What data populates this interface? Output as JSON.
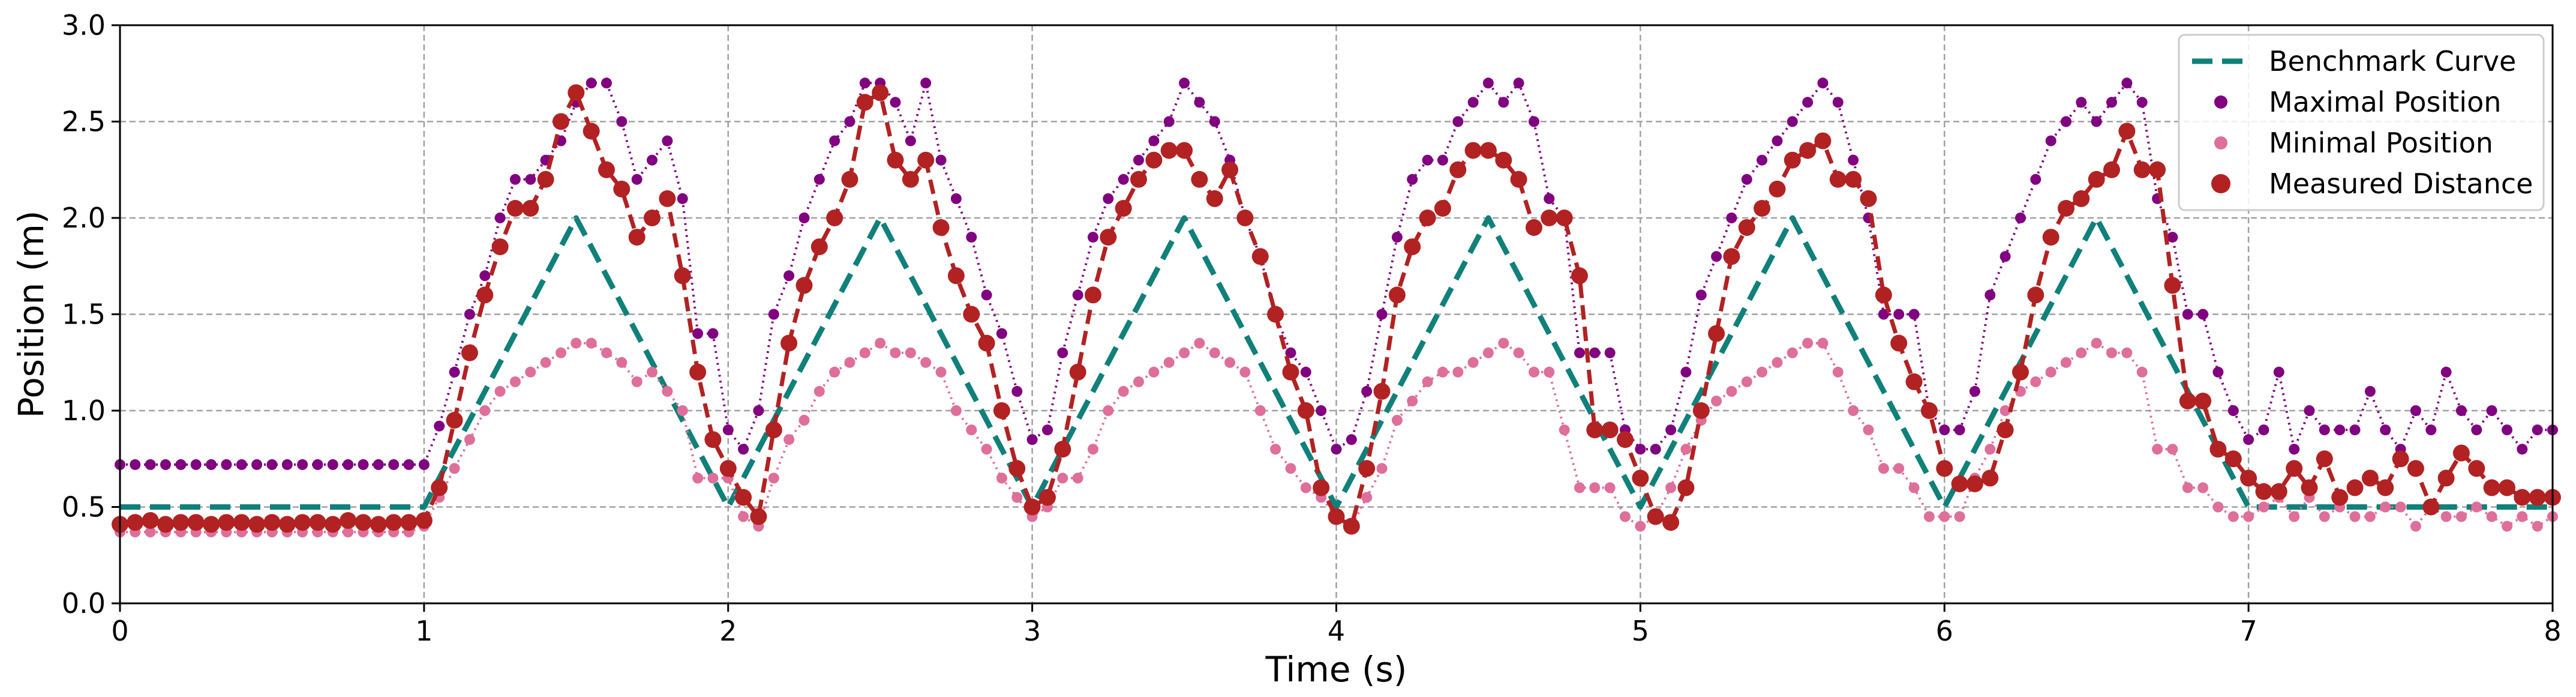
{
  "chart_data": {
    "type": "line",
    "title": "",
    "xlabel": "Time (s)",
    "ylabel": "Position (m)",
    "xlim": [
      0,
      8
    ],
    "ylim": [
      0.0,
      3.0
    ],
    "xticks": [
      0,
      1,
      2,
      3,
      4,
      5,
      6,
      7,
      8
    ],
    "xtick_labels": [
      "0",
      "1",
      "2",
      "3",
      "4",
      "5",
      "6",
      "7",
      "8"
    ],
    "yticks": [
      0.0,
      0.5,
      1.0,
      1.5,
      2.0,
      2.5,
      3.0
    ],
    "ytick_labels": [
      "0.0",
      "0.5",
      "1.0",
      "1.5",
      "2.0",
      "2.5",
      "3.0"
    ],
    "grid": true,
    "legend_position": "top-right",
    "series": [
      {
        "name": "Benchmark Curve",
        "style": "dashed-line",
        "color": "#10807a",
        "x": [
          0,
          1,
          1.5,
          2,
          2.5,
          3,
          3.5,
          4,
          4.5,
          5,
          5.5,
          6,
          6.5,
          7,
          8
        ],
        "y": [
          0.5,
          0.5,
          2.0,
          0.5,
          2.0,
          0.5,
          2.0,
          0.5,
          2.0,
          0.5,
          2.0,
          0.5,
          2.0,
          0.5,
          0.5
        ]
      },
      {
        "name": "Maximal Position",
        "style": "dotted-line-small-markers",
        "color": "#800080",
        "x": [
          0,
          0.05,
          0.1,
          0.15,
          0.2,
          0.25,
          0.3,
          0.35,
          0.4,
          0.45,
          0.5,
          0.55,
          0.6,
          0.65,
          0.7,
          0.75,
          0.8,
          0.85,
          0.9,
          0.95,
          1.0,
          1.05,
          1.1,
          1.15,
          1.2,
          1.25,
          1.3,
          1.35,
          1.4,
          1.45,
          1.5,
          1.55,
          1.6,
          1.65,
          1.7,
          1.75,
          1.8,
          1.85,
          1.9,
          1.95,
          2.0,
          2.05,
          2.1,
          2.15,
          2.2,
          2.25,
          2.3,
          2.35,
          2.4,
          2.45,
          2.5,
          2.55,
          2.6,
          2.65,
          2.7,
          2.75,
          2.8,
          2.85,
          2.9,
          2.95,
          3.0,
          3.05,
          3.1,
          3.15,
          3.2,
          3.25,
          3.3,
          3.35,
          3.4,
          3.45,
          3.5,
          3.55,
          3.6,
          3.65,
          3.7,
          3.75,
          3.8,
          3.85,
          3.9,
          3.95,
          4.0,
          4.05,
          4.1,
          4.15,
          4.2,
          4.25,
          4.3,
          4.35,
          4.4,
          4.45,
          4.5,
          4.55,
          4.6,
          4.65,
          4.7,
          4.75,
          4.8,
          4.85,
          4.9,
          4.95,
          5.0,
          5.05,
          5.1,
          5.15,
          5.2,
          5.25,
          5.3,
          5.35,
          5.4,
          5.45,
          5.5,
          5.55,
          5.6,
          5.65,
          5.7,
          5.75,
          5.8,
          5.85,
          5.9,
          5.95,
          6.0,
          6.05,
          6.1,
          6.15,
          6.2,
          6.25,
          6.3,
          6.35,
          6.4,
          6.45,
          6.5,
          6.55,
          6.6,
          6.65,
          6.7,
          6.75,
          6.8,
          6.85,
          6.9,
          6.95,
          7.0,
          7.05,
          7.1,
          7.15,
          7.2,
          7.25,
          7.3,
          7.35,
          7.4,
          7.45,
          7.5,
          7.55,
          7.6,
          7.65,
          7.7,
          7.75,
          7.8,
          7.85,
          7.9,
          7.95,
          8.0
        ],
        "y": [
          0.72,
          0.72,
          0.72,
          0.72,
          0.72,
          0.72,
          0.72,
          0.72,
          0.72,
          0.72,
          0.72,
          0.72,
          0.72,
          0.72,
          0.72,
          0.72,
          0.72,
          0.72,
          0.72,
          0.72,
          0.72,
          0.92,
          1.2,
          1.5,
          1.7,
          2.0,
          2.2,
          2.2,
          2.3,
          2.4,
          2.6,
          2.7,
          2.7,
          2.5,
          2.2,
          2.3,
          2.4,
          2.1,
          1.4,
          1.4,
          0.9,
          0.8,
          1.0,
          1.5,
          1.7,
          2.0,
          2.2,
          2.4,
          2.5,
          2.7,
          2.7,
          2.6,
          2.4,
          2.7,
          2.3,
          2.1,
          1.9,
          1.6,
          1.4,
          1.1,
          0.85,
          0.9,
          1.3,
          1.6,
          1.9,
          2.1,
          2.2,
          2.3,
          2.4,
          2.5,
          2.7,
          2.6,
          2.5,
          2.3,
          2.0,
          1.8,
          1.5,
          1.3,
          1.2,
          1.0,
          0.8,
          0.85,
          1.1,
          1.5,
          1.9,
          2.2,
          2.3,
          2.3,
          2.5,
          2.6,
          2.7,
          2.6,
          2.7,
          2.5,
          2.1,
          2.0,
          1.3,
          1.3,
          1.3,
          0.9,
          0.8,
          0.8,
          0.9,
          1.2,
          1.6,
          1.8,
          2.0,
          2.2,
          2.3,
          2.4,
          2.5,
          2.6,
          2.7,
          2.6,
          2.3,
          2.0,
          1.5,
          1.5,
          1.5,
          1.0,
          0.9,
          0.9,
          1.1,
          1.6,
          1.8,
          2.0,
          2.2,
          2.4,
          2.5,
          2.6,
          2.5,
          2.6,
          2.7,
          2.6,
          2.1,
          1.9,
          1.5,
          1.5,
          1.2,
          1.0,
          0.85,
          0.9,
          1.2,
          0.8,
          1.0,
          0.9,
          0.9,
          0.9,
          1.1,
          0.9,
          0.8,
          1.0,
          0.9,
          1.2,
          1.0,
          0.9,
          1.0,
          0.9,
          0.8,
          0.9,
          0.9
        ]
      },
      {
        "name": "Minimal Position",
        "style": "dotted-line-small-markers",
        "color": "#de6f9a",
        "x": [
          0,
          0.05,
          0.1,
          0.15,
          0.2,
          0.25,
          0.3,
          0.35,
          0.4,
          0.45,
          0.5,
          0.55,
          0.6,
          0.65,
          0.7,
          0.75,
          0.8,
          0.85,
          0.9,
          0.95,
          1.0,
          1.05,
          1.1,
          1.15,
          1.2,
          1.25,
          1.3,
          1.35,
          1.4,
          1.45,
          1.5,
          1.55,
          1.6,
          1.65,
          1.7,
          1.75,
          1.8,
          1.85,
          1.9,
          1.95,
          2.0,
          2.05,
          2.1,
          2.15,
          2.2,
          2.25,
          2.3,
          2.35,
          2.4,
          2.45,
          2.5,
          2.55,
          2.6,
          2.65,
          2.7,
          2.75,
          2.8,
          2.85,
          2.9,
          2.95,
          3.0,
          3.05,
          3.1,
          3.15,
          3.2,
          3.25,
          3.3,
          3.35,
          3.4,
          3.45,
          3.5,
          3.55,
          3.6,
          3.65,
          3.7,
          3.75,
          3.8,
          3.85,
          3.9,
          3.95,
          4.0,
          4.05,
          4.1,
          4.15,
          4.2,
          4.25,
          4.3,
          4.35,
          4.4,
          4.45,
          4.5,
          4.55,
          4.6,
          4.65,
          4.7,
          4.75,
          4.8,
          4.85,
          4.9,
          4.95,
          5.0,
          5.05,
          5.1,
          5.15,
          5.2,
          5.25,
          5.3,
          5.35,
          5.4,
          5.45,
          5.5,
          5.55,
          5.6,
          5.65,
          5.7,
          5.75,
          5.8,
          5.85,
          5.9,
          5.95,
          6.0,
          6.05,
          6.1,
          6.15,
          6.2,
          6.25,
          6.3,
          6.35,
          6.4,
          6.45,
          6.5,
          6.55,
          6.6,
          6.65,
          6.7,
          6.75,
          6.8,
          6.85,
          6.9,
          6.95,
          7.0,
          7.05,
          7.1,
          7.15,
          7.2,
          7.25,
          7.3,
          7.35,
          7.4,
          7.45,
          7.5,
          7.55,
          7.6,
          7.65,
          7.7,
          7.75,
          7.8,
          7.85,
          7.9,
          7.95,
          8.0
        ],
        "y": [
          0.37,
          0.37,
          0.37,
          0.37,
          0.37,
          0.37,
          0.37,
          0.37,
          0.37,
          0.37,
          0.37,
          0.37,
          0.37,
          0.37,
          0.37,
          0.37,
          0.37,
          0.37,
          0.37,
          0.37,
          0.4,
          0.55,
          0.7,
          0.85,
          1.0,
          1.1,
          1.15,
          1.2,
          1.25,
          1.3,
          1.35,
          1.35,
          1.3,
          1.25,
          1.15,
          1.2,
          1.1,
          1.0,
          0.65,
          0.65,
          0.65,
          0.45,
          0.4,
          0.65,
          0.85,
          0.95,
          1.1,
          1.2,
          1.25,
          1.3,
          1.35,
          1.3,
          1.3,
          1.25,
          1.2,
          1.0,
          0.9,
          0.8,
          0.65,
          0.55,
          0.45,
          0.5,
          0.65,
          0.65,
          0.8,
          1.0,
          1.1,
          1.15,
          1.2,
          1.25,
          1.3,
          1.35,
          1.3,
          1.25,
          1.2,
          1.0,
          0.8,
          0.7,
          0.6,
          0.55,
          0.45,
          0.4,
          0.55,
          0.7,
          0.95,
          1.05,
          1.15,
          1.2,
          1.2,
          1.25,
          1.3,
          1.35,
          1.3,
          1.2,
          1.2,
          0.9,
          0.6,
          0.6,
          0.6,
          0.45,
          0.4,
          0.45,
          0.6,
          0.8,
          0.95,
          1.05,
          1.1,
          1.15,
          1.2,
          1.25,
          1.3,
          1.35,
          1.35,
          1.2,
          1.0,
          0.9,
          0.7,
          0.7,
          0.6,
          0.45,
          0.45,
          0.45,
          0.65,
          0.8,
          1.0,
          1.1,
          1.15,
          1.2,
          1.25,
          1.3,
          1.35,
          1.3,
          1.3,
          1.2,
          0.8,
          0.8,
          0.6,
          0.6,
          0.5,
          0.45,
          0.45,
          0.5,
          0.55,
          0.45,
          0.55,
          0.45,
          0.5,
          0.45,
          0.45,
          0.5,
          0.5,
          0.4,
          0.5,
          0.45,
          0.45,
          0.5,
          0.45,
          0.4,
          0.45,
          0.4,
          0.45
        ]
      },
      {
        "name": "Measured Distance",
        "style": "dashed-line-large-markers",
        "color": "#b22222",
        "x": [
          0,
          0.05,
          0.1,
          0.15,
          0.2,
          0.25,
          0.3,
          0.35,
          0.4,
          0.45,
          0.5,
          0.55,
          0.6,
          0.65,
          0.7,
          0.75,
          0.8,
          0.85,
          0.9,
          0.95,
          1.0,
          1.05,
          1.1,
          1.15,
          1.2,
          1.25,
          1.3,
          1.35,
          1.4,
          1.45,
          1.5,
          1.55,
          1.6,
          1.65,
          1.7,
          1.75,
          1.8,
          1.85,
          1.9,
          1.95,
          2.0,
          2.05,
          2.1,
          2.15,
          2.2,
          2.25,
          2.3,
          2.35,
          2.4,
          2.45,
          2.5,
          2.55,
          2.6,
          2.65,
          2.7,
          2.75,
          2.8,
          2.85,
          2.9,
          2.95,
          3.0,
          3.05,
          3.1,
          3.15,
          3.2,
          3.25,
          3.3,
          3.35,
          3.4,
          3.45,
          3.5,
          3.55,
          3.6,
          3.65,
          3.7,
          3.75,
          3.8,
          3.85,
          3.9,
          3.95,
          4.0,
          4.05,
          4.1,
          4.15,
          4.2,
          4.25,
          4.3,
          4.35,
          4.4,
          4.45,
          4.5,
          4.55,
          4.6,
          4.65,
          4.7,
          4.75,
          4.8,
          4.85,
          4.9,
          4.95,
          5.0,
          5.05,
          5.1,
          5.15,
          5.2,
          5.25,
          5.3,
          5.35,
          5.4,
          5.45,
          5.5,
          5.55,
          5.6,
          5.65,
          5.7,
          5.75,
          5.8,
          5.85,
          5.9,
          5.95,
          6.0,
          6.05,
          6.1,
          6.15,
          6.2,
          6.25,
          6.3,
          6.35,
          6.4,
          6.45,
          6.5,
          6.55,
          6.6,
          6.65,
          6.7,
          6.75,
          6.8,
          6.85,
          6.9,
          6.95,
          7.0,
          7.05,
          7.1,
          7.15,
          7.2,
          7.25,
          7.3,
          7.35,
          7.4,
          7.45,
          7.5,
          7.55,
          7.6,
          7.65,
          7.7,
          7.75,
          7.8,
          7.85,
          7.9,
          7.95,
          8.0
        ],
        "y": [
          0.41,
          0.42,
          0.43,
          0.41,
          0.42,
          0.42,
          0.41,
          0.42,
          0.42,
          0.41,
          0.42,
          0.41,
          0.42,
          0.42,
          0.41,
          0.43,
          0.42,
          0.41,
          0.42,
          0.42,
          0.43,
          0.6,
          0.95,
          1.3,
          1.6,
          1.85,
          2.05,
          2.05,
          2.2,
          2.5,
          2.65,
          2.45,
          2.25,
          2.15,
          1.9,
          2.0,
          2.1,
          1.7,
          1.2,
          0.85,
          0.7,
          0.55,
          0.45,
          0.9,
          1.35,
          1.65,
          1.85,
          2.0,
          2.2,
          2.6,
          2.65,
          2.3,
          2.2,
          2.3,
          1.95,
          1.7,
          1.5,
          1.35,
          1.0,
          0.7,
          0.5,
          0.55,
          0.8,
          1.2,
          1.6,
          1.9,
          2.05,
          2.2,
          2.3,
          2.35,
          2.35,
          2.2,
          2.1,
          2.25,
          2.0,
          1.8,
          1.5,
          1.2,
          1.0,
          0.6,
          0.45,
          0.4,
          0.7,
          1.1,
          1.6,
          1.85,
          2.0,
          2.05,
          2.25,
          2.35,
          2.35,
          2.3,
          2.2,
          1.95,
          2.0,
          2.0,
          1.7,
          0.9,
          0.9,
          0.85,
          0.65,
          0.45,
          0.42,
          0.6,
          1.0,
          1.4,
          1.8,
          1.95,
          2.05,
          2.15,
          2.3,
          2.35,
          2.4,
          2.2,
          2.2,
          2.1,
          1.6,
          1.35,
          1.15,
          1.0,
          0.7,
          0.62,
          0.62,
          0.65,
          0.9,
          1.2,
          1.6,
          1.9,
          2.05,
          2.1,
          2.2,
          2.25,
          2.45,
          2.25,
          2.25,
          1.65,
          1.05,
          1.05,
          0.8,
          0.75,
          0.65,
          0.58,
          0.58,
          0.7,
          0.6,
          0.75,
          0.55,
          0.6,
          0.65,
          0.6,
          0.75,
          0.7,
          0.5,
          0.65,
          0.78,
          0.7,
          0.6,
          0.6,
          0.55,
          0.55,
          0.55
        ]
      }
    ]
  }
}
